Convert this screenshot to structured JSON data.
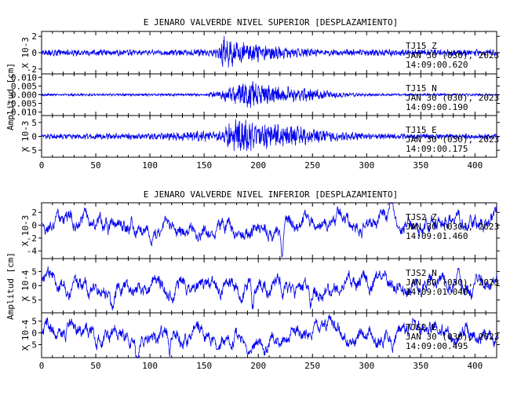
{
  "chart_data": [
    {
      "type": "line",
      "title": "E JENARO VALVERDE NIVEL SUPERIOR [DESPLAZAMIENTO]",
      "ylabel": "Amplitud [cm]",
      "xlim": [
        0,
        420
      ],
      "xticks": [
        "0",
        "50",
        "100",
        "150",
        "200",
        "250",
        "300",
        "350",
        "400"
      ],
      "series": [
        {
          "name": "TJ15 Z",
          "multiplier": "X 10-3",
          "ylim": [
            -2.6,
            2.6
          ],
          "yticks": [
            "2",
            "0",
            "-2"
          ],
          "annotation": [
            "TJ15   Z",
            "JAN 30 (030), 2023",
            "14:09:00.620"
          ],
          "event_start": 163,
          "event_peak": 172,
          "event_decay": 45,
          "envelope": [
            [
              0,
              0.45
            ],
            [
              100,
              0.4
            ],
            [
              160,
              0.45
            ],
            [
              168,
              2.2
            ],
            [
              180,
              1.6
            ],
            [
              215,
              0.8
            ],
            [
              260,
              0.45
            ],
            [
              420,
              0.45
            ]
          ]
        },
        {
          "name": "TJ15 N",
          "multiplier": "",
          "ylim": [
            -0.012,
            0.012
          ],
          "yticks": [
            "0.010",
            "0.005",
            "0.000",
            "-0.005",
            "-0.010"
          ],
          "annotation": [
            "TJ15   N",
            "JAN 30 (030), 2023",
            "14:09:00.190"
          ],
          "envelope": [
            [
              0,
              0.0007
            ],
            [
              150,
              0.0008
            ],
            [
              165,
              0.0025
            ],
            [
              188,
              0.0095
            ],
            [
              210,
              0.006
            ],
            [
              240,
              0.0045
            ],
            [
              270,
              0.0018
            ],
            [
              300,
              0.0009
            ],
            [
              420,
              0.0007
            ]
          ]
        },
        {
          "name": "TJ15 E",
          "multiplier": "X 10-3",
          "ylim": [
            -7.5,
            7.5
          ],
          "yticks": [
            "5",
            "0",
            "-5"
          ],
          "annotation": [
            "TJ15   E",
            "JAN 30 (030), 2023",
            "14:09:00.175"
          ],
          "envelope": [
            [
              0,
              1
            ],
            [
              100,
              1.2
            ],
            [
              165,
              2.5
            ],
            [
              180,
              7
            ],
            [
              200,
              5
            ],
            [
              225,
              4.5
            ],
            [
              255,
              2.5
            ],
            [
              300,
              1.2
            ],
            [
              420,
              1
            ]
          ]
        }
      ]
    },
    {
      "type": "line",
      "title": "E JENARO VALVERDE NIVEL INFERIOR [DESPLAZAMIENTO]",
      "ylabel": "Amplitud [cm]",
      "xlim": [
        0,
        420
      ],
      "xticks": [
        "0",
        "50",
        "100",
        "150",
        "200",
        "250",
        "300",
        "350",
        "400"
      ],
      "series": [
        {
          "name": "TJS2 Z",
          "multiplier": "X 10-3",
          "ylim": [
            -5.2,
            3.5
          ],
          "yticks": [
            "2",
            "0",
            "-2",
            "-4"
          ],
          "annotation": [
            "TJS2   Z",
            "JAN 30 (030), 2023",
            "14:09:01.460"
          ],
          "envelope": [
            [
              0,
              1.1
            ],
            [
              420,
              1.1
            ]
          ],
          "spikes": [
            [
              222,
              -4.2
            ],
            [
              323,
              3.2
            ]
          ]
        },
        {
          "name": "TJS2 N",
          "multiplier": "X 10-4",
          "ylim": [
            -9.5,
            9.5
          ],
          "yticks": [
            "5",
            "0",
            "-5"
          ],
          "annotation": [
            "TJS2   N",
            "JAN 30 (030), 2023",
            "14:09:01.040"
          ],
          "envelope": [
            [
              0,
              2.5
            ],
            [
              420,
              2.5
            ]
          ],
          "spikes": [
            [
              65,
              -5.2
            ],
            [
              195,
              -7.5
            ],
            [
              248,
              -6.5
            ],
            [
              385,
              7.2
            ]
          ]
        },
        {
          "name": "TJS2 E",
          "multiplier": "X 10-4",
          "ylim": [
            -10.5,
            8.5
          ],
          "yticks": [
            "5",
            "0",
            "-5"
          ],
          "annotation": [
            "TJS2   E",
            "JAN 30 (030), 2023",
            "14:09:00.495"
          ],
          "envelope": [
            [
              0,
              3
            ],
            [
              420,
              3
            ]
          ],
          "spikes": [
            [
              88,
              -8
            ],
            [
              118,
              -9.5
            ],
            [
              392,
              6
            ]
          ]
        }
      ]
    }
  ],
  "colors": {
    "trace": "#0000ee",
    "axes": "#000000",
    "background": "#ffffff"
  }
}
